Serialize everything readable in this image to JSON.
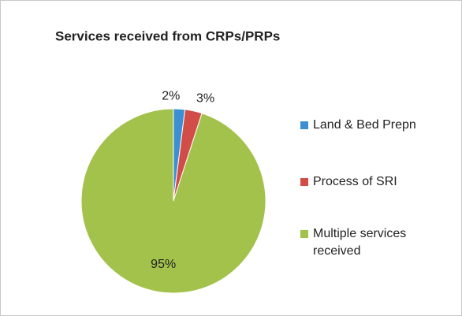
{
  "chart_data": {
    "type": "pie",
    "title": "Services received from CRPs/PRPs",
    "categories": [
      "Land & Bed Prepn",
      "Process of SRI",
      "Multiple services received"
    ],
    "values": [
      2,
      3,
      95
    ],
    "value_labels": [
      "2%",
      "3%",
      "95%"
    ],
    "colors": [
      "#3d8fd1",
      "#d24c48",
      "#a3c24b"
    ],
    "legend": "right"
  }
}
